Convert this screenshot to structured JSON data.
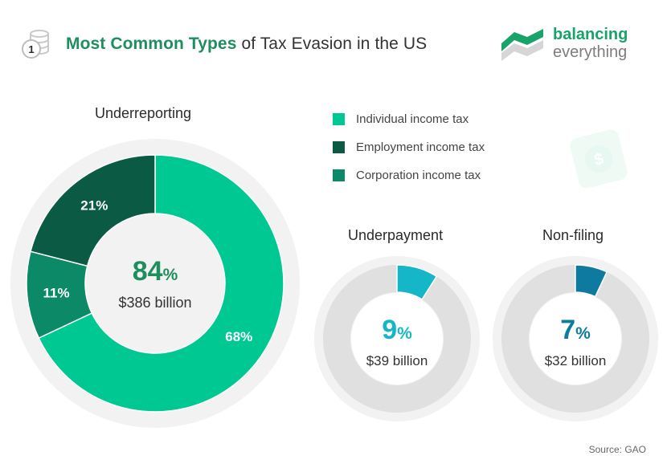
{
  "header": {
    "title_strong": "Most Common Types",
    "title_rest": "of Tax Evasion in the US",
    "badge_number": "1"
  },
  "brand": {
    "line1": "balancing",
    "line2": "everything"
  },
  "colors": {
    "individual": "#00c892",
    "employment": "#0b5a44",
    "corporation": "#0c8a67",
    "underpayment": "#16b6c9",
    "nonfiling": "#0e7aa0",
    "track": "#e0e0e0",
    "halo": "#f2f2f2"
  },
  "chart_data": [
    {
      "type": "pie",
      "title": "Underreporting",
      "center_value": "84",
      "center_unit": "%",
      "center_sub": "$386 billion",
      "slices": [
        {
          "label": "Individual income tax",
          "value": 68,
          "display": "68%"
        },
        {
          "label": "Corporation income tax",
          "value": 11,
          "display": "11%"
        },
        {
          "label": "Employment income tax",
          "value": 21,
          "display": "21%"
        }
      ]
    },
    {
      "type": "pie",
      "title": "Underpayment",
      "center_value": "9",
      "center_unit": "%",
      "center_sub": "$39 billion",
      "value": 9
    },
    {
      "type": "pie",
      "title": "Non-filing",
      "center_value": "7",
      "center_unit": "%",
      "center_sub": "$32 billion",
      "value": 7
    }
  ],
  "legend": [
    {
      "label": "Individual income tax",
      "color_key": "individual"
    },
    {
      "label": "Employment income tax",
      "color_key": "employment"
    },
    {
      "label": "Corporation income tax",
      "color_key": "corporation"
    }
  ],
  "source": "Source: GAO"
}
